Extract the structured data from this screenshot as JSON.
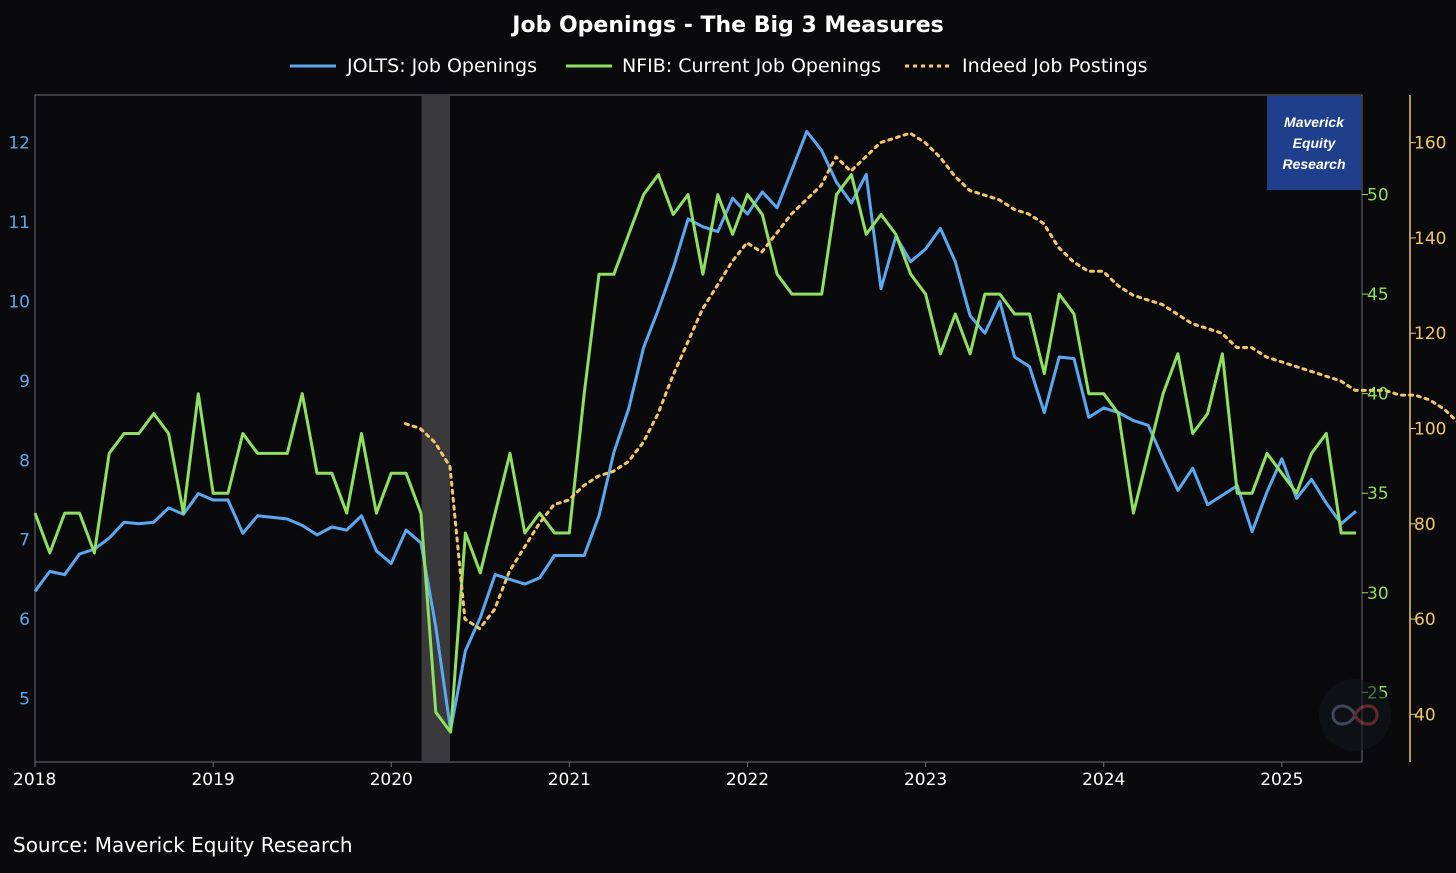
{
  "colors": {
    "background": "#0a0a0c",
    "jolts": "#5ba8f0",
    "nfib": "#8fe060",
    "indeed": "#f3c66a",
    "recession": "#3a3a3c",
    "badge": "#1f3f8c"
  },
  "badge": {
    "line1": "Maverick",
    "line2": "Equity",
    "line3": "Research"
  },
  "source": "Source: Maverick Equity Research",
  "chart_data": {
    "type": "line",
    "title": "Job Openings - The Big 3 Measures",
    "legend": {
      "placement": "top-center",
      "entries": [
        "JOLTS: Job Openings",
        "NFIB: Current Job Openings",
        "Indeed Job Postings"
      ]
    },
    "x_axis": {
      "range": [
        2018.0,
        2025.45
      ],
      "ticks": [
        2018,
        2019,
        2020,
        2021,
        2022,
        2023,
        2024,
        2025
      ],
      "tick_labels": [
        "2018",
        "2019",
        "2020",
        "2021",
        "2022",
        "2023",
        "2024",
        "2025"
      ]
    },
    "y_left": {
      "series": "JOLTS: Job Openings",
      "range": [
        4.2,
        12.6
      ],
      "ticks": [
        5,
        6,
        7,
        8,
        9,
        10,
        11,
        12
      ]
    },
    "y_mid": {
      "series": "NFIB: Current Job Openings",
      "range": [
        21.5,
        55.0
      ],
      "ticks": [
        25,
        30,
        35,
        40,
        45,
        50
      ]
    },
    "y_right": {
      "series": "Indeed Job Postings",
      "range": [
        30,
        170
      ],
      "ticks": [
        40,
        60,
        80,
        100,
        120,
        140,
        160
      ]
    },
    "recession_shading": [
      2020.17,
      2020.33
    ],
    "series": [
      {
        "name": "JOLTS: Job Openings",
        "axis": "left",
        "style": "solid",
        "start": 2018.0,
        "step": 0.08333,
        "values": [
          6.35,
          6.6,
          6.56,
          6.82,
          6.88,
          7.02,
          7.22,
          7.2,
          7.22,
          7.4,
          7.32,
          7.58,
          7.5,
          7.5,
          7.08,
          7.3,
          7.28,
          7.26,
          7.18,
          7.06,
          7.16,
          7.12,
          7.3,
          6.86,
          6.7,
          7.12,
          6.96,
          5.9,
          4.6,
          5.6,
          6.02,
          6.56,
          6.5,
          6.44,
          6.52,
          6.8,
          6.8,
          6.8,
          7.3,
          8.1,
          8.65,
          9.42,
          9.9,
          10.42,
          11.04,
          10.94,
          10.88,
          11.3,
          11.1,
          11.38,
          11.18,
          11.66,
          12.14,
          11.9,
          11.5,
          11.24,
          11.6,
          10.16,
          10.82,
          10.5,
          10.66,
          10.92,
          10.5,
          9.82,
          9.6,
          10.0,
          9.3,
          9.18,
          8.6,
          9.3,
          9.28,
          8.54,
          8.66,
          8.6,
          8.5,
          8.44,
          8.02,
          7.62,
          7.9,
          7.44,
          7.56,
          7.68,
          7.1,
          7.6,
          8.02,
          7.52,
          7.76,
          7.46,
          7.2,
          7.36
        ]
      },
      {
        "name": "NFIB: Current Job Openings",
        "axis": "mid",
        "style": "solid",
        "start": 2018.0,
        "step": 0.08333,
        "values": [
          34,
          32,
          34,
          34,
          32,
          37,
          38,
          38,
          39,
          38,
          34,
          40,
          35,
          35,
          38,
          37,
          37,
          37,
          40,
          36,
          36,
          34,
          38,
          34,
          36,
          36,
          34,
          24,
          23,
          33,
          31,
          34,
          37,
          33,
          34,
          33,
          33,
          40,
          46,
          46,
          48,
          50,
          51,
          49,
          50,
          46,
          50,
          48,
          50,
          49,
          46,
          45,
          45,
          45,
          50,
          51,
          48,
          49,
          48,
          46,
          45,
          42,
          44,
          42,
          45,
          45,
          44,
          44,
          41,
          45,
          44,
          40,
          40,
          39,
          34,
          37,
          40,
          42,
          38,
          39,
          42,
          35,
          35,
          37,
          36,
          35,
          37,
          38,
          33,
          33
        ]
      },
      {
        "name": "Indeed Job Postings",
        "axis": "right",
        "style": "dotted",
        "start": 2020.08,
        "step": 0.08333,
        "values": [
          101,
          100,
          97,
          92,
          60,
          58,
          62,
          70,
          75,
          80,
          84,
          85,
          88,
          90,
          91,
          93,
          97,
          103,
          111,
          118,
          125,
          130,
          135,
          139,
          137,
          141,
          145,
          148,
          151,
          157,
          154,
          157,
          160,
          161,
          162,
          160,
          157,
          153,
          150,
          149,
          148,
          146,
          145,
          143,
          138,
          135,
          133,
          133,
          130,
          128,
          127,
          126,
          124,
          122,
          121,
          120,
          117,
          117,
          115,
          114,
          113,
          112,
          111,
          110,
          108,
          108,
          108,
          107,
          107,
          106,
          104,
          101
        ]
      }
    ]
  }
}
